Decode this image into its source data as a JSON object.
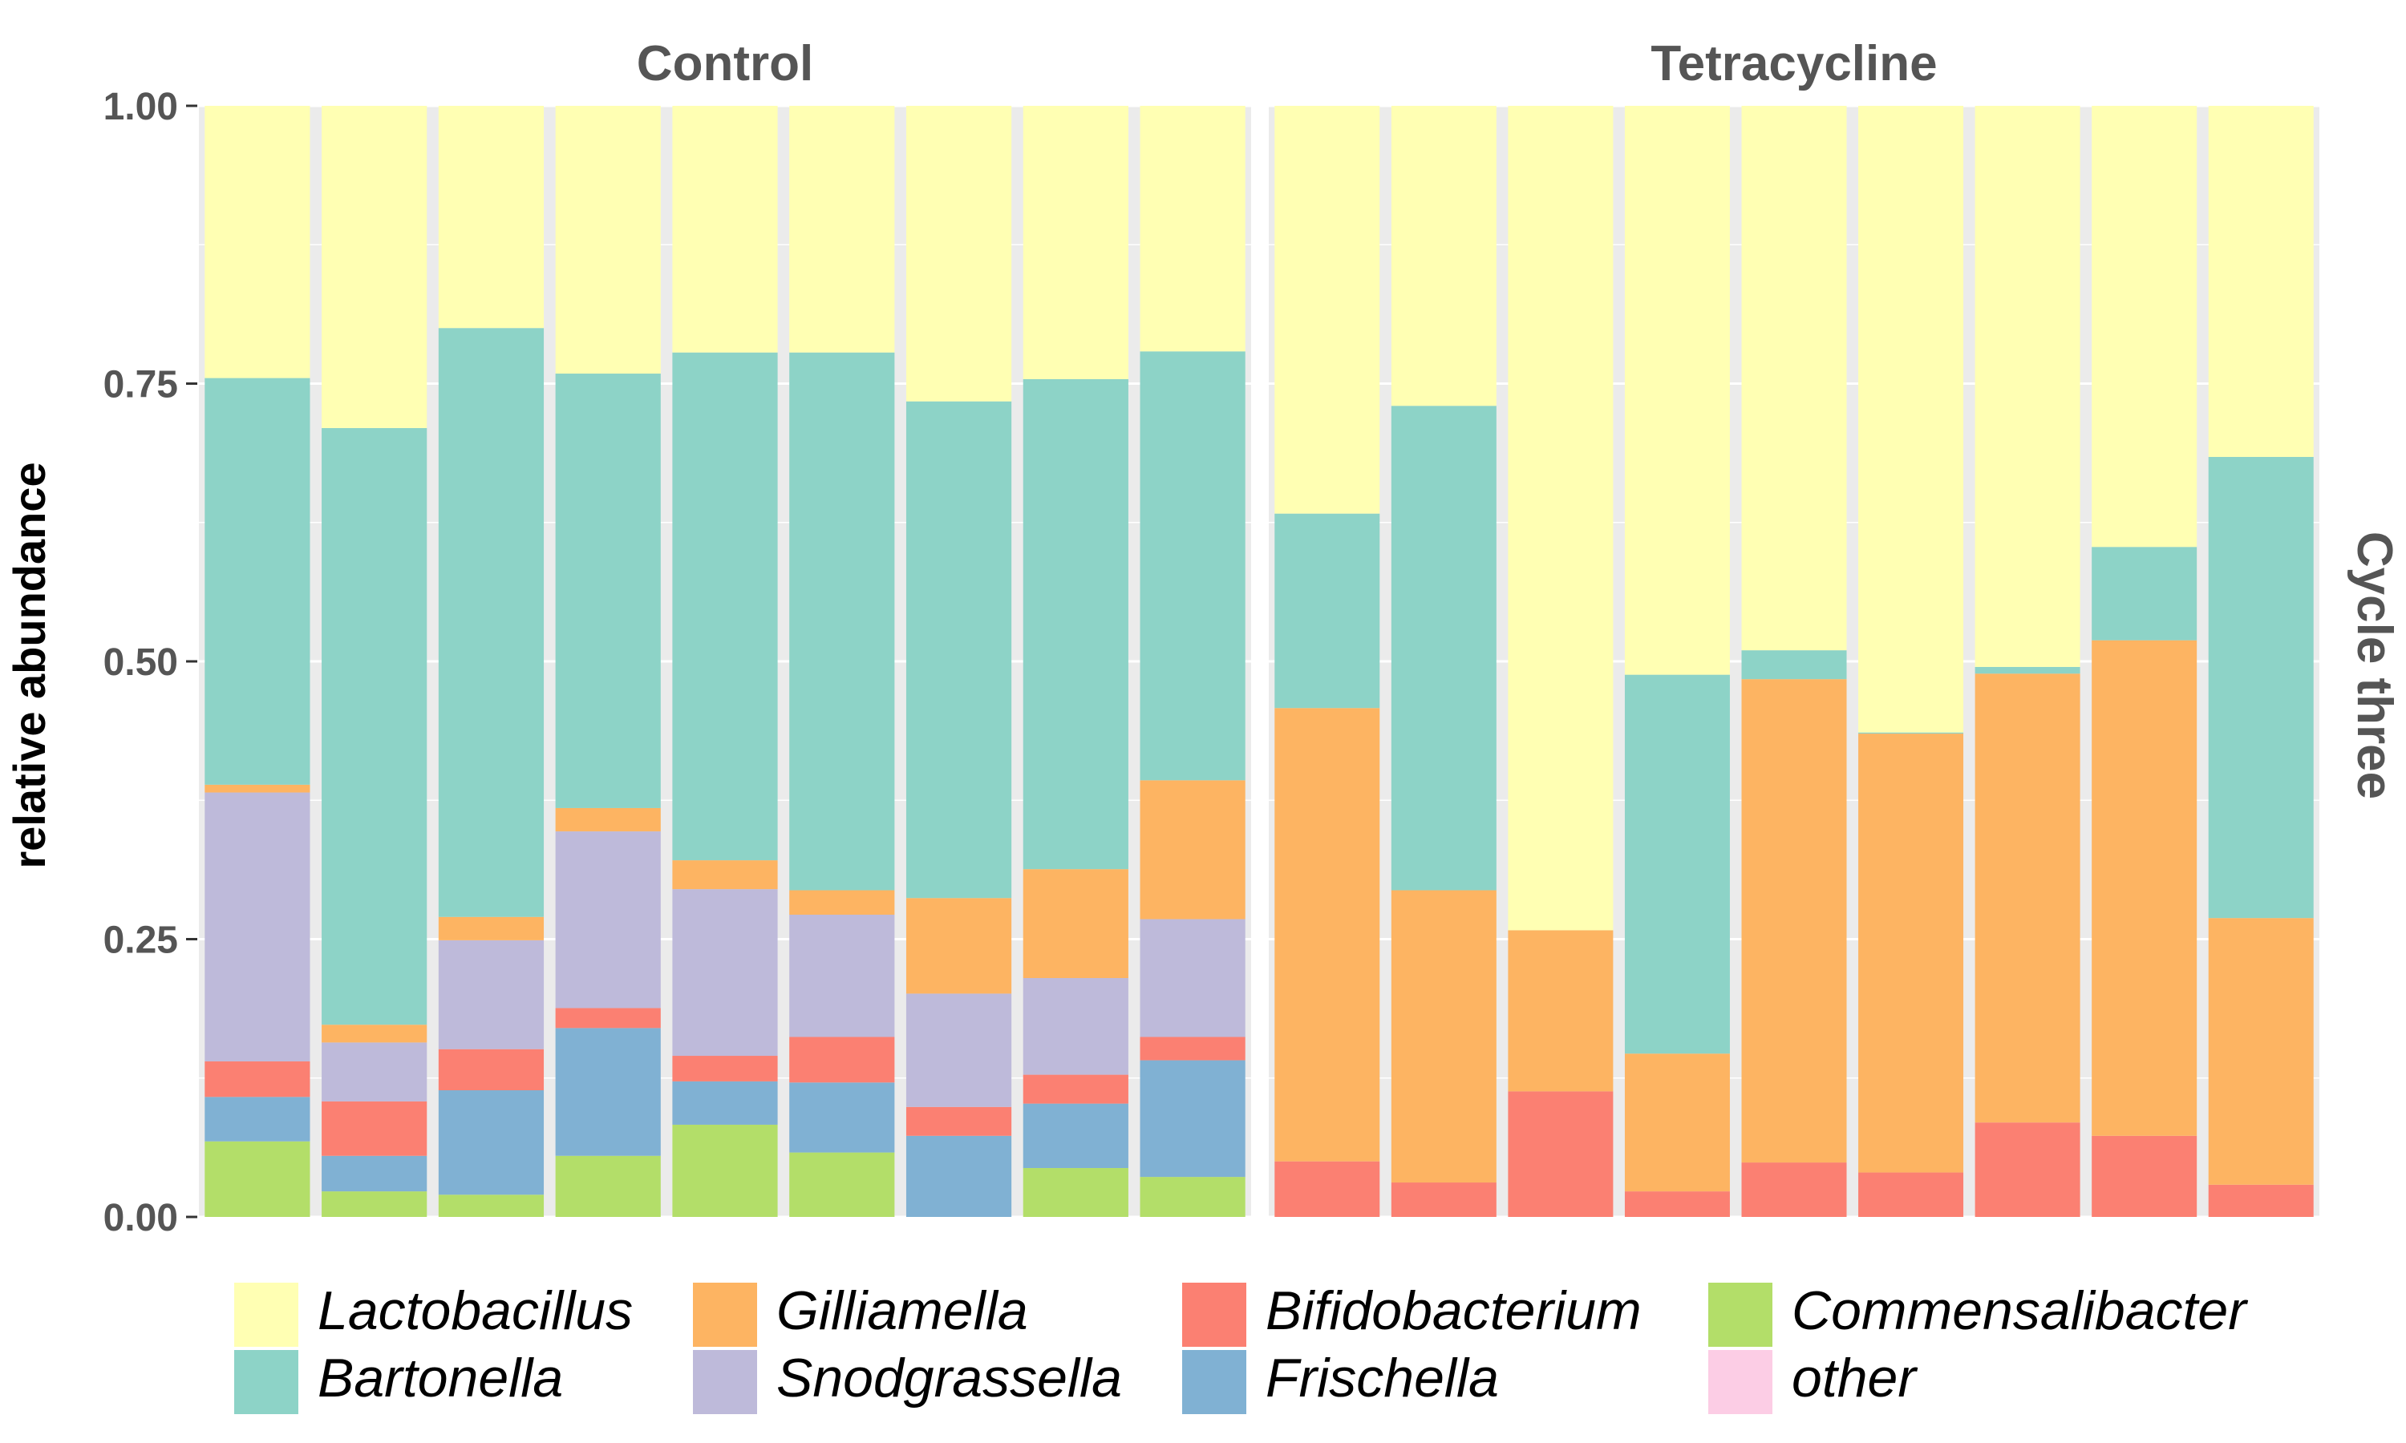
{
  "chart_data": {
    "type": "bar",
    "stacked": true,
    "ylabel": "relative abundance",
    "row_strip": "Cycle three",
    "ylim": [
      0,
      1
    ],
    "yticks": [
      "0.00",
      "0.25",
      "0.50",
      "0.75",
      "1.00"
    ],
    "stack_order": [
      "Commensalibacter",
      "Frischella",
      "Bifidobacterium",
      "Snodgrassella",
      "Gilliamella",
      "Bartonella",
      "Lactobacillus",
      "other"
    ],
    "legend": {
      "position": "bottom",
      "items": [
        {
          "name": "Lactobacillus",
          "color": "#FFFFB3"
        },
        {
          "name": "Bartonella",
          "color": "#8DD3C7"
        },
        {
          "name": "Gilliamella",
          "color": "#FDB462"
        },
        {
          "name": "Snodgrassella",
          "color": "#BEBADA"
        },
        {
          "name": "Bifidobacterium",
          "color": "#FB8072"
        },
        {
          "name": "Frischella",
          "color": "#80B1D3"
        },
        {
          "name": "Commensalibacter",
          "color": "#B3DE69"
        },
        {
          "name": "other",
          "color": "#FCCDE5"
        }
      ]
    },
    "panels": [
      {
        "title": "Control",
        "samples": [
          {
            "Commensalibacter": 0.068,
            "Frischella": 0.04,
            "Bifidobacterium": 0.032,
            "Snodgrassella": 0.242,
            "Gilliamella": 0.007,
            "Bartonella": 0.366,
            "Lactobacillus": 0.245
          },
          {
            "Commensalibacter": 0.023,
            "Frischella": 0.032,
            "Bifidobacterium": 0.049,
            "Snodgrassella": 0.053,
            "Gilliamella": 0.016,
            "Bartonella": 0.537,
            "Lactobacillus": 0.29
          },
          {
            "Commensalibacter": 0.02,
            "Frischella": 0.094,
            "Bifidobacterium": 0.037,
            "Snodgrassella": 0.098,
            "Gilliamella": 0.021,
            "Bartonella": 0.53,
            "Lactobacillus": 0.2
          },
          {
            "Commensalibacter": 0.055,
            "Frischella": 0.115,
            "Bifidobacterium": 0.018,
            "Snodgrassella": 0.159,
            "Gilliamella": 0.021,
            "Bartonella": 0.391,
            "Lactobacillus": 0.241
          },
          {
            "Commensalibacter": 0.083,
            "Frischella": 0.039,
            "Bifidobacterium": 0.023,
            "Snodgrassella": 0.15,
            "Gilliamella": 0.026,
            "Bartonella": 0.457,
            "Lactobacillus": 0.222
          },
          {
            "Commensalibacter": 0.058,
            "Frischella": 0.063,
            "Bifidobacterium": 0.041,
            "Snodgrassella": 0.11,
            "Gilliamella": 0.022,
            "Bartonella": 0.484,
            "Lactobacillus": 0.222
          },
          {
            "Commensalibacter": 0.0,
            "Frischella": 0.073,
            "Bifidobacterium": 0.026,
            "Snodgrassella": 0.102,
            "Gilliamella": 0.086,
            "Bartonella": 0.447,
            "Lactobacillus": 0.266
          },
          {
            "Commensalibacter": 0.044,
            "Frischella": 0.058,
            "Bifidobacterium": 0.026,
            "Snodgrassella": 0.087,
            "Gilliamella": 0.098,
            "Bartonella": 0.441,
            "Lactobacillus": 0.246
          },
          {
            "Commensalibacter": 0.036,
            "Frischella": 0.105,
            "Bifidobacterium": 0.021,
            "Snodgrassella": 0.106,
            "Gilliamella": 0.125,
            "Bartonella": 0.386,
            "Lactobacillus": 0.221
          }
        ]
      },
      {
        "title": "Tetracycline",
        "samples": [
          {
            "Commensalibacter": 0.0,
            "Frischella": 0.0,
            "Bifidobacterium": 0.05,
            "Snodgrassella": 0.0,
            "Gilliamella": 0.408,
            "Bartonella": 0.175,
            "Lactobacillus": 0.367
          },
          {
            "Commensalibacter": 0.0,
            "Frischella": 0.0,
            "Bifidobacterium": 0.031,
            "Snodgrassella": 0.0,
            "Gilliamella": 0.263,
            "Bartonella": 0.436,
            "Lactobacillus": 0.27
          },
          {
            "Commensalibacter": 0.0,
            "Frischella": 0.0,
            "Bifidobacterium": 0.113,
            "Snodgrassella": 0.0,
            "Gilliamella": 0.145,
            "Bartonella": 0.0,
            "Lactobacillus": 0.742
          },
          {
            "Commensalibacter": 0.0,
            "Frischella": 0.0,
            "Bifidobacterium": 0.023,
            "Snodgrassella": 0.0,
            "Gilliamella": 0.124,
            "Bartonella": 0.341,
            "Lactobacillus": 0.512
          },
          {
            "Commensalibacter": 0.0,
            "Frischella": 0.0,
            "Bifidobacterium": 0.049,
            "Snodgrassella": 0.0,
            "Gilliamella": 0.435,
            "Bartonella": 0.026,
            "Lactobacillus": 0.49
          },
          {
            "Commensalibacter": 0.0,
            "Frischella": 0.0,
            "Bifidobacterium": 0.04,
            "Snodgrassella": 0.0,
            "Gilliamella": 0.395,
            "Bartonella": 0.001,
            "Lactobacillus": 0.564
          },
          {
            "Commensalibacter": 0.0,
            "Frischella": 0.0,
            "Bifidobacterium": 0.085,
            "Snodgrassella": 0.0,
            "Gilliamella": 0.404,
            "Bartonella": 0.006,
            "Lactobacillus": 0.505
          },
          {
            "Commensalibacter": 0.0,
            "Frischella": 0.0,
            "Bifidobacterium": 0.073,
            "Snodgrassella": 0.0,
            "Gilliamella": 0.446,
            "Bartonella": 0.084,
            "Lactobacillus": 0.397
          },
          {
            "Commensalibacter": 0.0,
            "Frischella": 0.0,
            "Bifidobacterium": 0.029,
            "Snodgrassella": 0.0,
            "Gilliamella": 0.24,
            "Bartonella": 0.415,
            "Lactobacillus": 0.316
          }
        ]
      }
    ],
    "grid": true,
    "panel_background": "#EBEBEB"
  }
}
